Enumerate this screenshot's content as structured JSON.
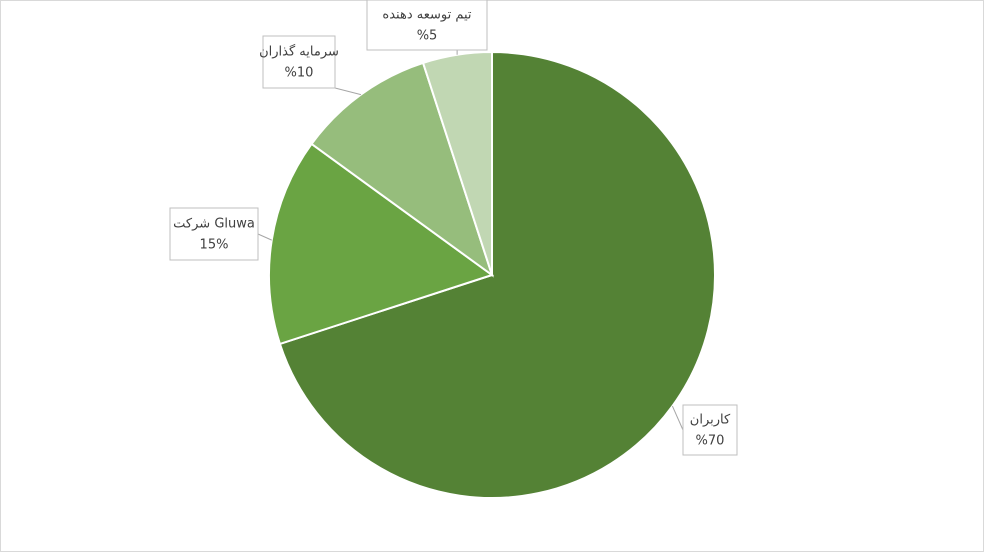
{
  "chart_data": {
    "type": "pie",
    "categories": [
      "کاربران",
      "شرکت Gluwa",
      "سرمایه گذاران",
      "تیم توسعه دهنده"
    ],
    "values": [
      70,
      15,
      10,
      5
    ],
    "value_labels": [
      "%70",
      "15%",
      "%10",
      "%5"
    ],
    "colors": [
      "#548235",
      "#6aa443",
      "#96bd7c",
      "#c1d7b3"
    ]
  }
}
